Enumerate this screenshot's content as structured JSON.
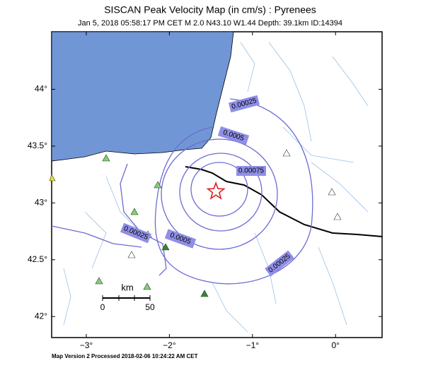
{
  "header": {
    "title": "SISCAN Peak Velocity Map (in cm/s) : Pyrenees",
    "subtitle": "Jan  5, 2018 05:58:17 PM CET   M 2.0   N43.10 W1.44   Depth: 39.1km   ID:14394"
  },
  "map": {
    "xlim": [
      -3.417,
      0.56
    ],
    "ylim": [
      41.815,
      44.506
    ],
    "xticks": [
      {
        "value": -3,
        "label": "−3°"
      },
      {
        "value": -2,
        "label": "−2°"
      },
      {
        "value": -1,
        "label": "−1°"
      },
      {
        "value": 0,
        "label": "0°"
      }
    ],
    "yticks": [
      {
        "value": 42,
        "label": "42°"
      },
      {
        "value": 42.5,
        "label": "42.5°"
      },
      {
        "value": 43,
        "label": "43°"
      },
      {
        "value": 43.5,
        "label": "43.5°"
      },
      {
        "value": 44,
        "label": "44°"
      }
    ],
    "epicenter": {
      "lon": -1.44,
      "lat": 43.1
    },
    "contour_labels": [
      "0.00025",
      "0.0005",
      "0.00075",
      "0.00025",
      "0.0005",
      "0.00025"
    ],
    "scale": {
      "unit": "km",
      "labels": [
        "0",
        "50"
      ]
    }
  },
  "footer": "Map Version 2 Processed 2018-02-06 10:24:22 AM CET"
}
